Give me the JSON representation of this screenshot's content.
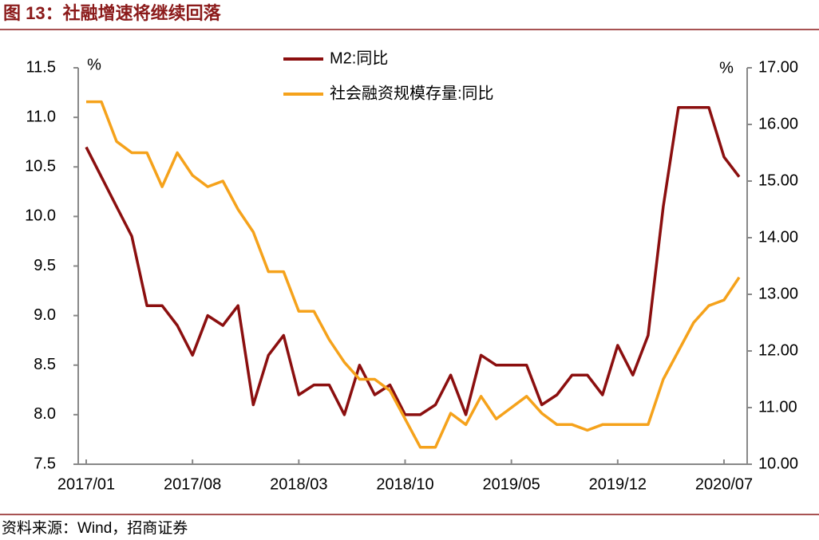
{
  "title": "图 13：社融增速将继续回落",
  "source": "资料来源：Wind，招商证券",
  "chart_data": {
    "type": "line",
    "categories": [
      "2017/01",
      null,
      null,
      null,
      null,
      null,
      null,
      "2017/08",
      null,
      null,
      null,
      null,
      null,
      null,
      "2018/03",
      null,
      null,
      null,
      null,
      null,
      null,
      "2018/10",
      null,
      null,
      null,
      null,
      null,
      null,
      "2019/05",
      null,
      null,
      null,
      null,
      null,
      null,
      "2019/12",
      null,
      null,
      null,
      null,
      null,
      null,
      "2020/07",
      null
    ],
    "y_unit": "%",
    "y2_unit": "%",
    "ylim": [
      7.5,
      11.5
    ],
    "yticks": [
      {
        "value": 7.5,
        "label": "7.5"
      },
      {
        "value": 8,
        "label": "8.0"
      },
      {
        "value": 8.5,
        "label": "8.5"
      },
      {
        "value": 9,
        "label": "9.0"
      },
      {
        "value": 9.5,
        "label": "9.5"
      },
      {
        "value": 10,
        "label": "10.0"
      },
      {
        "value": 10.5,
        "label": "10.5"
      },
      {
        "value": 11,
        "label": "11.0"
      },
      {
        "value": 11.5,
        "label": "11.5"
      }
    ],
    "y2lim": [
      10,
      17
    ],
    "y2ticks": [
      {
        "value": 10,
        "label": "10.00"
      },
      {
        "value": 11,
        "label": "11.00"
      },
      {
        "value": 12,
        "label": "12.00"
      },
      {
        "value": 13,
        "label": "13.00"
      },
      {
        "value": 14,
        "label": "14.00"
      },
      {
        "value": 15,
        "label": "15.00"
      },
      {
        "value": 16,
        "label": "16.00"
      },
      {
        "value": 17,
        "label": "17.00"
      }
    ],
    "series": [
      {
        "name": "M2:同比",
        "color": "#8b0f0f",
        "values": [
          10.7,
          10.4,
          10.1,
          9.8,
          9.1,
          9.1,
          8.9,
          8.6,
          9.0,
          8.9,
          9.1,
          8.1,
          8.6,
          8.8,
          8.2,
          8.3,
          8.3,
          8.0,
          8.5,
          8.2,
          8.3,
          8.0,
          8.0,
          8.1,
          8.4,
          8.0,
          8.6,
          8.5,
          8.5,
          8.5,
          8.1,
          8.2,
          8.4,
          8.4,
          8.2,
          8.7,
          8.4,
          8.8,
          10.1,
          11.1,
          11.1,
          11.1,
          10.6,
          10.4
        ]
      },
      {
        "name": "社会融资规模存量:同比",
        "color": "#f5a21b",
        "axis": "y2",
        "values": [
          16.4,
          16.4,
          15.7,
          15.5,
          15.5,
          14.9,
          15.5,
          15.1,
          14.9,
          15.0,
          14.5,
          14.1,
          13.4,
          13.4,
          12.7,
          12.7,
          12.2,
          11.8,
          11.5,
          11.5,
          11.3,
          10.8,
          10.3,
          10.3,
          10.9,
          10.7,
          11.2,
          10.8,
          11.0,
          11.2,
          10.9,
          10.7,
          10.7,
          10.6,
          10.7,
          10.7,
          10.7,
          10.7,
          11.5,
          12.0,
          12.5,
          12.8,
          12.9,
          13.3
        ]
      }
    ]
  }
}
